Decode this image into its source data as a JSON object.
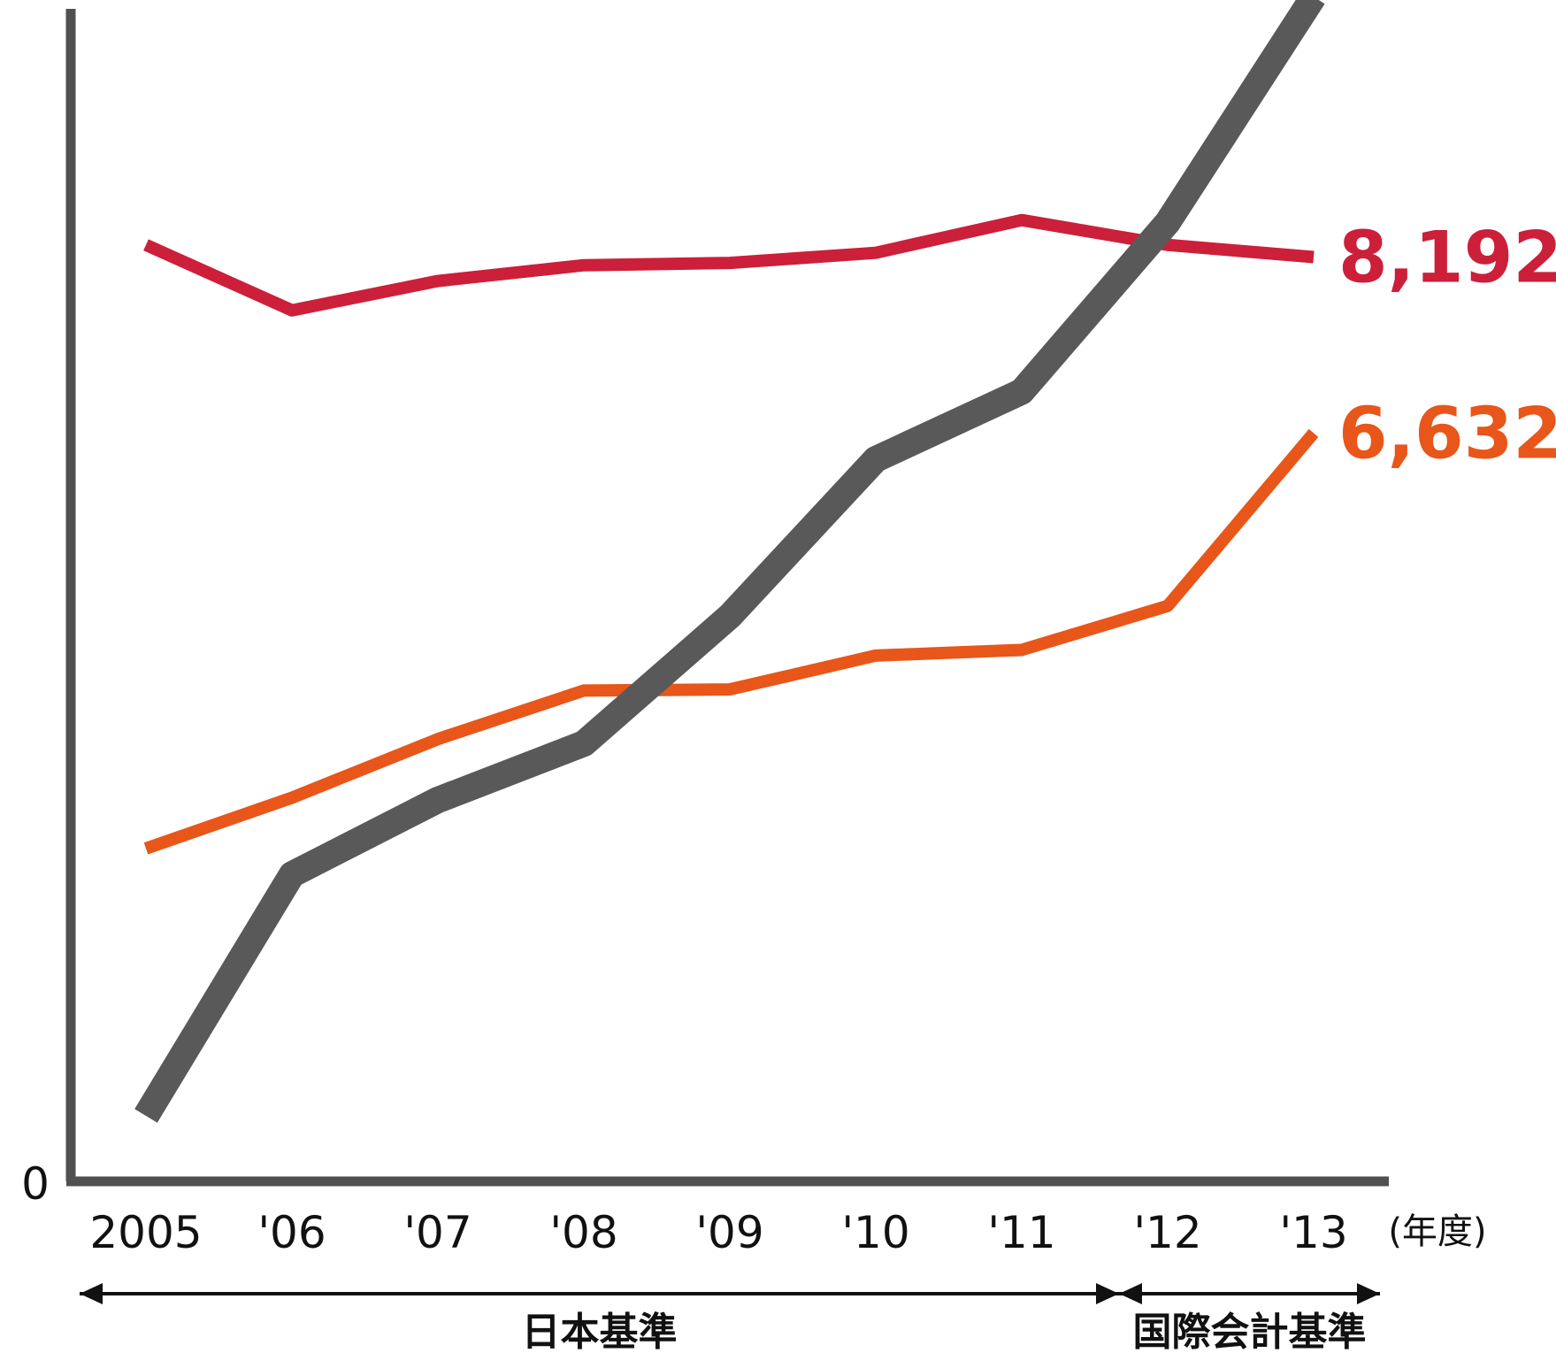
{
  "chart_data": {
    "type": "line",
    "categories": [
      "2005",
      "'06",
      "'07",
      "'08",
      "'09",
      "'10",
      "'11",
      "'12",
      "'13"
    ],
    "y_axis_label_zero": "0",
    "x_unit": "(年度)",
    "ylim": [
      0,
      10000
    ],
    "grid": false,
    "series": [
      {
        "name": "",
        "color": "#cc1f3a",
        "values": [
          8300,
          7720,
          7980,
          8120,
          8140,
          8230,
          8520,
          8300,
          8192
        ],
        "end_label": "8,192"
      },
      {
        "name": "",
        "color": "#e8561a",
        "values": [
          2950,
          3400,
          3920,
          4350,
          4360,
          4660,
          4710,
          5100,
          6632
        ],
        "end_label": "6,632"
      },
      {
        "name": "",
        "color": "#595959",
        "values": [
          580,
          2720,
          3380,
          3880,
          5010,
          6400,
          7000,
          8500,
          10500
        ],
        "end_label": ""
      }
    ],
    "periods": [
      {
        "label": "日本基準",
        "from": "2005",
        "to": "'11"
      },
      {
        "label": "国際会計基準",
        "from": "'11",
        "to": "'13"
      }
    ]
  }
}
